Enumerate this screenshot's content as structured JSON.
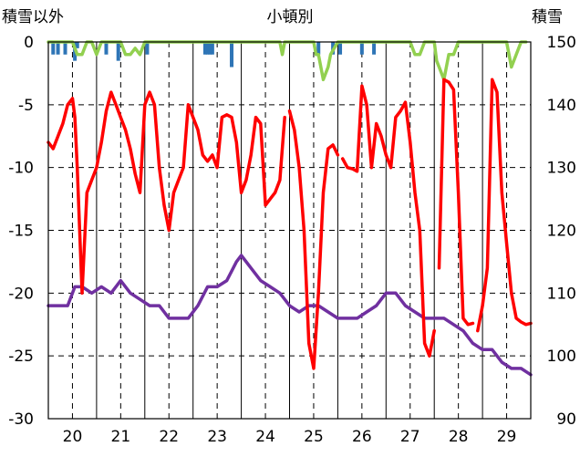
{
  "chart_data": {
    "type": "line",
    "title": "小頓別",
    "ylabel_left": "積雪以外",
    "ylabel_right": "積雪",
    "y_left_lim": [
      -30,
      0
    ],
    "y_left_ticks": [
      0,
      -5,
      -10,
      -15,
      -20,
      -25,
      -30
    ],
    "y_right_lim": [
      90,
      150
    ],
    "y_right_ticks": [
      150,
      140,
      130,
      120,
      110,
      100,
      90
    ],
    "x_lim": [
      19.5,
      29.5
    ],
    "x_ticks": [
      20,
      21,
      22,
      23,
      24,
      25,
      26,
      27,
      28,
      29
    ],
    "grid": true,
    "colors": {
      "temp": "#ff0000",
      "snow_depth": "#7030a0",
      "precip": "#2e75b6",
      "snowfall": "#92d050"
    },
    "series": [
      {
        "key": "temp",
        "axis": "left",
        "x": [
          19.5,
          19.6,
          19.7,
          19.8,
          19.9,
          20.0,
          20.05,
          20.1,
          20.2,
          20.3,
          20.4,
          20.5,
          20.6,
          20.7,
          20.8,
          20.9,
          21.0,
          21.1,
          21.2,
          21.3,
          21.4,
          21.5,
          21.6,
          21.7,
          21.8,
          21.9,
          22.0,
          22.1,
          22.2,
          22.3,
          22.4,
          22.5,
          22.6,
          22.7,
          22.8,
          22.9,
          23.0,
          23.1,
          23.2,
          23.3,
          23.4,
          23.5,
          23.6,
          23.7,
          23.8,
          23.9,
          24.0,
          24.1,
          24.2,
          24.3,
          24.4,
          24.5,
          24.6,
          24.7,
          24.8,
          24.9,
          25.0,
          25.1,
          25.2,
          25.3,
          25.4,
          25.5,
          25.6,
          25.7,
          25.8,
          25.9,
          26.0,
          26.1,
          26.2,
          26.3,
          26.4,
          26.5,
          26.6,
          26.7,
          26.8,
          26.9,
          27.0,
          27.1,
          27.2,
          27.3,
          27.4,
          27.5,
          27.6,
          27.7,
          27.8,
          27.9,
          28.0,
          28.1,
          28.2,
          28.3,
          28.4,
          28.5,
          28.6,
          28.7,
          28.8,
          28.9,
          29.0,
          29.1,
          29.2,
          29.3,
          29.4,
          29.5
        ],
        "values": [
          -8,
          -8.5,
          -7.5,
          -6.5,
          -5,
          -4.5,
          -6,
          -10,
          -20,
          -12,
          -11,
          -10,
          -8,
          -5.5,
          -4,
          -5,
          -6,
          -7,
          -8.5,
          -10.5,
          -12,
          -5,
          -4,
          -5,
          -10,
          -13,
          -15,
          -12,
          -11,
          -10,
          -5,
          -6,
          -7,
          -9,
          -9.5,
          -9,
          -10,
          -6,
          -5.8,
          -6,
          -8,
          -12,
          -11,
          -9,
          -6,
          -6.5,
          -13,
          -12.5,
          -12,
          -11,
          -6,
          -5.5,
          -7,
          -10,
          -15,
          -24,
          -26,
          -20,
          -12,
          -8.5,
          -8.2,
          -9,
          -9.3,
          -10,
          -10.1,
          -10.3,
          -3.5,
          -5,
          -10,
          -6.5,
          -7.5,
          -9,
          -10,
          -6,
          -5.5,
          -4.8,
          -8,
          -12,
          -15,
          -24,
          -25,
          -23,
          -18,
          -3,
          -3.2,
          -3.8,
          -12,
          -22,
          -22.5,
          -22.4,
          -23,
          -21,
          -18,
          -3,
          -4,
          -12,
          -16,
          -20,
          -22,
          -22.3,
          -22.5,
          -22.4
        ],
        "gaps_after_x": [
          24.4,
          25.5,
          27.5,
          28.3
        ]
      },
      {
        "key": "snow_depth",
        "axis": "right",
        "x": [
          19.5,
          19.7,
          19.9,
          20.0,
          20.05,
          20.2,
          20.4,
          20.6,
          20.8,
          21.0,
          21.2,
          21.4,
          21.6,
          21.8,
          22.0,
          22.2,
          22.4,
          22.5,
          22.6,
          22.8,
          23.0,
          23.2,
          23.4,
          23.5,
          23.7,
          23.9,
          24.1,
          24.3,
          24.5,
          24.7,
          24.9,
          25.1,
          25.3,
          25.5,
          25.7,
          25.9,
          26.1,
          26.3,
          26.5,
          26.7,
          26.9,
          27.1,
          27.3,
          27.5,
          27.7,
          27.9,
          28.1,
          28.3,
          28.5,
          28.7,
          28.9,
          29.1,
          29.3,
          29.5
        ],
        "values": [
          108,
          108,
          108,
          110,
          111,
          111,
          110,
          111,
          110,
          112,
          110,
          109,
          108,
          108,
          106,
          106,
          106,
          107,
          108,
          111,
          111,
          112,
          115,
          116,
          114,
          112,
          111,
          110,
          108,
          107,
          108,
          108,
          107,
          106,
          106,
          106,
          107,
          108,
          110,
          110,
          108,
          107,
          106,
          106,
          106,
          105,
          104,
          102,
          101,
          101,
          99,
          98,
          98,
          97
        ]
      },
      {
        "key": "precip",
        "axis": "left",
        "x": [
          19.6,
          19.7,
          19.85,
          20.05,
          20.1,
          20.7,
          20.95,
          21.55,
          22.75,
          22.8,
          22.85,
          22.9,
          23.3,
          25.1,
          25.4,
          25.55,
          26.0,
          26.25
        ],
        "values": [
          -1,
          -1,
          -1,
          -1.5,
          -0.5,
          -1,
          -1.5,
          -1,
          -1,
          -1,
          -1,
          -1,
          -2,
          -1,
          -1,
          -1,
          -1,
          -1
        ]
      },
      {
        "key": "snowfall",
        "axis": "left",
        "x": [
          19.5,
          20.0,
          20.1,
          20.2,
          20.3,
          20.4,
          20.5,
          20.6,
          21.0,
          21.1,
          21.2,
          21.3,
          21.4,
          21.5,
          24.0,
          24.3,
          24.35,
          24.4,
          25.0,
          25.05,
          25.1,
          25.2,
          25.3,
          25.35,
          25.5,
          26.5,
          27.0,
          27.1,
          27.2,
          27.25,
          27.3,
          27.5,
          27.55,
          27.6,
          27.7,
          27.8,
          27.9,
          28.0,
          28.1,
          29.0,
          29.1,
          29.2,
          29.3,
          29.4
        ],
        "values": [
          0,
          0,
          -1,
          -1,
          0,
          0,
          -1,
          0,
          0,
          -1,
          -1,
          -0.5,
          -1,
          0,
          0,
          0,
          -1,
          0,
          0,
          -1,
          -1,
          -3,
          -2,
          -1,
          0,
          0,
          0,
          -1,
          -1,
          -0.5,
          0,
          0,
          -1.5,
          -2,
          -3,
          -1,
          -1,
          0,
          0,
          0,
          -2,
          -1,
          0,
          0
        ]
      }
    ]
  }
}
